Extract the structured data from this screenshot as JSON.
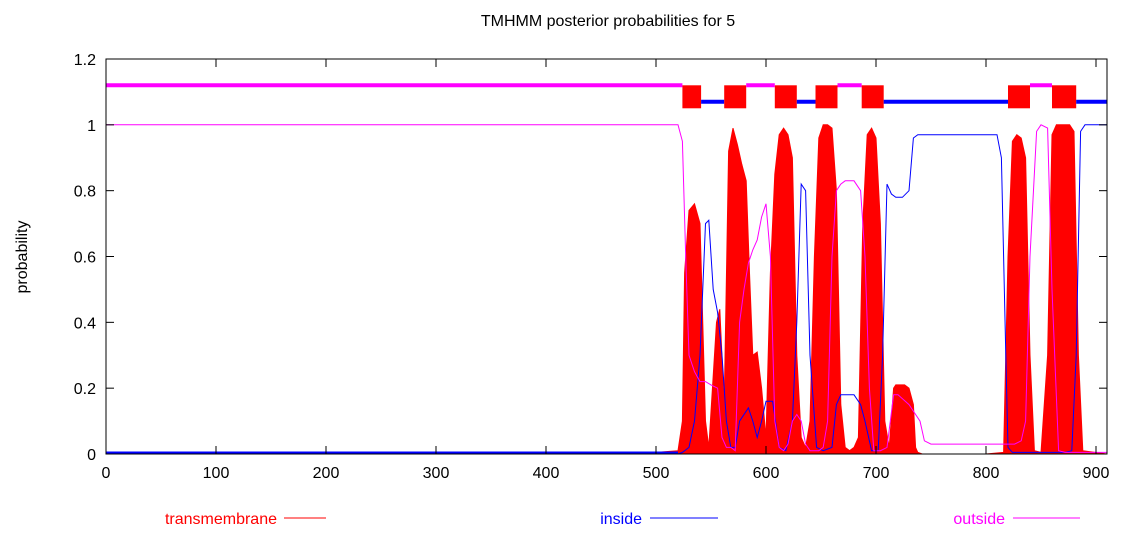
{
  "chart_data": {
    "type": "area",
    "title": "TMHMM posterior probabilities for 5",
    "xlabel": "",
    "ylabel": "probability",
    "xlim": [
      0,
      910
    ],
    "ylim": [
      0,
      1.2
    ],
    "xticks": [
      0,
      100,
      200,
      300,
      400,
      500,
      600,
      700,
      800,
      900
    ],
    "yticks": [
      0,
      0.2,
      0.4,
      0.6,
      0.8,
      1,
      1.2
    ],
    "grid": false,
    "legend_position": "bottom",
    "colors": {
      "transmembrane": "#ff0000",
      "inside": "#0000ff",
      "outside": "#ff00ff"
    },
    "legend": [
      {
        "key": "transmembrane",
        "label": "transmembrane"
      },
      {
        "key": "inside",
        "label": "inside"
      },
      {
        "key": "outside",
        "label": "outside"
      }
    ],
    "topology": {
      "outside_level": 1.12,
      "inside_level": 1.07,
      "tm_band": [
        1.05,
        1.12
      ],
      "segments": [
        {
          "type": "outside",
          "start": 0,
          "end": 524
        },
        {
          "type": "tm",
          "start": 524,
          "end": 541
        },
        {
          "type": "inside",
          "start": 541,
          "end": 562
        },
        {
          "type": "tm",
          "start": 562,
          "end": 582
        },
        {
          "type": "outside",
          "start": 582,
          "end": 608
        },
        {
          "type": "tm",
          "start": 608,
          "end": 628
        },
        {
          "type": "inside",
          "start": 628,
          "end": 645
        },
        {
          "type": "tm",
          "start": 645,
          "end": 665
        },
        {
          "type": "outside",
          "start": 665,
          "end": 687
        },
        {
          "type": "tm",
          "start": 687,
          "end": 707
        },
        {
          "type": "inside",
          "start": 707,
          "end": 820
        },
        {
          "type": "tm",
          "start": 820,
          "end": 840
        },
        {
          "type": "outside",
          "start": 840,
          "end": 860
        },
        {
          "type": "tm",
          "start": 860,
          "end": 882
        },
        {
          "type": "inside",
          "start": 882,
          "end": 910
        }
      ]
    },
    "series": [
      {
        "key": "transmembrane",
        "style": "area",
        "x": [
          0,
          420,
          430,
          470,
          500,
          520,
          524,
          526,
          530,
          535,
          540,
          545,
          548,
          555,
          558,
          562,
          566,
          570,
          574,
          578,
          582,
          585,
          588,
          592,
          596,
          600,
          604,
          608,
          612,
          616,
          620,
          624,
          628,
          632,
          636,
          640,
          644,
          648,
          652,
          656,
          660,
          664,
          668,
          672,
          676,
          680,
          684,
          688,
          692,
          696,
          700,
          704,
          708,
          712,
          716,
          718,
          722,
          726,
          730,
          734,
          736,
          738,
          742,
          760,
          800,
          816,
          820,
          824,
          828,
          832,
          836,
          840,
          844,
          850,
          856,
          860,
          864,
          870,
          876,
          880,
          884,
          888,
          910
        ],
        "y": [
          0,
          0,
          0.005,
          0.005,
          0.005,
          0.01,
          0.1,
          0.55,
          0.74,
          0.76,
          0.7,
          0.1,
          0.02,
          0.4,
          0.44,
          0.15,
          0.92,
          0.99,
          0.94,
          0.88,
          0.83,
          0.55,
          0.3,
          0.31,
          0.2,
          0.05,
          0.55,
          0.85,
          0.97,
          0.99,
          0.97,
          0.9,
          0.3,
          0.05,
          0.02,
          0.1,
          0.6,
          0.96,
          1.0,
          1.0,
          0.99,
          0.8,
          0.15,
          0.02,
          0.01,
          0.02,
          0.05,
          0.7,
          0.97,
          0.99,
          0.96,
          0.7,
          0.1,
          0.02,
          0.2,
          0.21,
          0.21,
          0.21,
          0.2,
          0.15,
          0.02,
          0.005,
          0,
          0,
          0,
          0.005,
          0.6,
          0.95,
          0.97,
          0.96,
          0.9,
          0.3,
          0.01,
          0.005,
          0.3,
          0.97,
          1.0,
          1.0,
          1.0,
          0.98,
          0.3,
          0.01,
          0
        ]
      },
      {
        "key": "inside",
        "style": "line",
        "x": [
          0,
          520,
          524,
          530,
          535,
          540,
          545,
          548,
          552,
          556,
          560,
          564,
          568,
          572,
          576,
          580,
          584,
          588,
          592,
          596,
          600,
          606,
          612,
          618,
          624,
          628,
          632,
          636,
          640,
          646,
          652,
          660,
          664,
          668,
          680,
          686,
          690,
          696,
          702,
          706,
          710,
          714,
          718,
          724,
          730,
          734,
          738,
          742,
          750,
          800,
          810,
          814,
          818,
          820,
          824,
          830,
          840,
          850,
          856,
          860,
          866,
          872,
          878,
          882,
          886,
          890,
          900,
          910
        ],
        "y": [
          0,
          0,
          0.005,
          0.02,
          0.1,
          0.3,
          0.7,
          0.71,
          0.5,
          0.43,
          0.3,
          0.1,
          0.02,
          0.02,
          0.1,
          0.12,
          0.14,
          0.1,
          0.05,
          0.1,
          0.16,
          0.16,
          0.02,
          0.01,
          0.1,
          0.4,
          0.82,
          0.8,
          0.3,
          0.02,
          0.01,
          0.02,
          0.15,
          0.18,
          0.18,
          0.15,
          0.1,
          0.01,
          0.01,
          0.3,
          0.82,
          0.79,
          0.78,
          0.78,
          0.8,
          0.96,
          0.97,
          0.97,
          0.97,
          0.97,
          0.97,
          0.9,
          0.3,
          0.02,
          0.005,
          0.005,
          0.005,
          0.005,
          0.005,
          0.005,
          0.005,
          0.005,
          0.01,
          0.3,
          0.98,
          1.0,
          1.0,
          1.0
        ]
      },
      {
        "key": "outside",
        "style": "line",
        "x": [
          0,
          520,
          524,
          527,
          530,
          535,
          540,
          545,
          550,
          556,
          560,
          564,
          568,
          572,
          576,
          580,
          584,
          588,
          592,
          596,
          600,
          604,
          608,
          612,
          616,
          620,
          624,
          628,
          632,
          636,
          640,
          644,
          648,
          652,
          656,
          660,
          664,
          668,
          672,
          680,
          686,
          690,
          694,
          698,
          704,
          710,
          716,
          720,
          730,
          740,
          744,
          750,
          800,
          820,
          826,
          832,
          836,
          840,
          846,
          850,
          856,
          860,
          866,
          872,
          878,
          884,
          890,
          910
        ],
        "y": [
          1.0,
          1.0,
          0.95,
          0.6,
          0.3,
          0.25,
          0.22,
          0.22,
          0.21,
          0.2,
          0.05,
          0.02,
          0.02,
          0.01,
          0.4,
          0.5,
          0.58,
          0.62,
          0.65,
          0.72,
          0.76,
          0.6,
          0.1,
          0.02,
          0.01,
          0.03,
          0.1,
          0.12,
          0.1,
          0.03,
          0.01,
          0.01,
          0.01,
          0.02,
          0.1,
          0.6,
          0.8,
          0.82,
          0.83,
          0.83,
          0.8,
          0.6,
          0.2,
          0.01,
          0.01,
          0.02,
          0.18,
          0.18,
          0.15,
          0.1,
          0.04,
          0.03,
          0.03,
          0.03,
          0.03,
          0.04,
          0.1,
          0.6,
          0.98,
          1.0,
          0.99,
          0.5,
          0.01,
          0.005,
          0.005,
          0.005,
          0.005,
          0.005
        ]
      }
    ]
  }
}
